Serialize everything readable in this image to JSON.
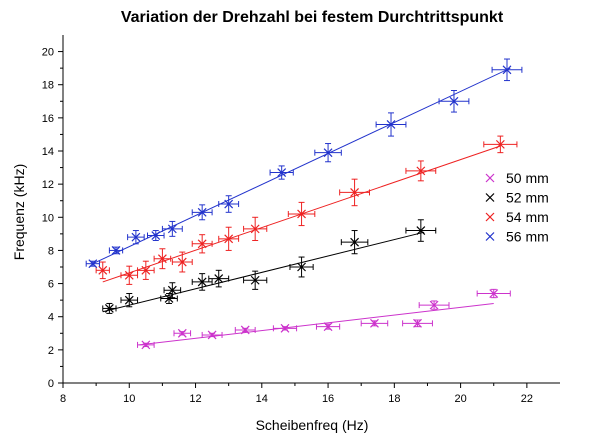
{
  "chart_data": {
    "type": "scatter",
    "title": "Variation der Drehzahl bei festem Durchtrittspunkt",
    "xlabel": "Scheibenfreq (Hz)",
    "ylabel": "Frequenz (kHz)",
    "xlim": [
      8,
      23
    ],
    "ylim": [
      0,
      21
    ],
    "xticks": [
      8,
      10,
      12,
      14,
      16,
      18,
      20,
      22
    ],
    "yticks": [
      0,
      2,
      4,
      6,
      8,
      10,
      12,
      14,
      16,
      18,
      20
    ],
    "legend_position": "right",
    "grid": false,
    "series": [
      {
        "name": "50 mm",
        "color": "#cc33cc",
        "marker": "x",
        "points": [
          {
            "x": 10.5,
            "y": 2.3,
            "xerr": 0.25,
            "yerr": 0.1
          },
          {
            "x": 11.6,
            "y": 3.0,
            "xerr": 0.25,
            "yerr": 0.1
          },
          {
            "x": 12.5,
            "y": 2.9,
            "xerr": 0.3,
            "yerr": 0.1
          },
          {
            "x": 13.5,
            "y": 3.2,
            "xerr": 0.3,
            "yerr": 0.1
          },
          {
            "x": 14.7,
            "y": 3.3,
            "xerr": 0.35,
            "yerr": 0.1
          },
          {
            "x": 16.0,
            "y": 3.4,
            "xerr": 0.35,
            "yerr": 0.15
          },
          {
            "x": 17.4,
            "y": 3.6,
            "xerr": 0.4,
            "yerr": 0.15
          },
          {
            "x": 18.7,
            "y": 3.6,
            "xerr": 0.45,
            "yerr": 0.2
          },
          {
            "x": 19.2,
            "y": 4.7,
            "xerr": 0.45,
            "yerr": 0.25
          },
          {
            "x": 21.0,
            "y": 5.4,
            "xerr": 0.5,
            "yerr": 0.25
          }
        ],
        "fit": {
          "x": [
            10.3,
            21.0
          ],
          "y": [
            2.3,
            4.8
          ]
        }
      },
      {
        "name": "52 mm",
        "color": "#000000",
        "marker": "x",
        "points": [
          {
            "x": 9.4,
            "y": 4.5,
            "xerr": 0.2,
            "yerr": 0.3
          },
          {
            "x": 10.0,
            "y": 5.0,
            "xerr": 0.25,
            "yerr": 0.4
          },
          {
            "x": 11.2,
            "y": 5.1,
            "xerr": 0.25,
            "yerr": 0.3
          },
          {
            "x": 11.3,
            "y": 5.6,
            "xerr": 0.25,
            "yerr": 0.45
          },
          {
            "x": 12.2,
            "y": 6.1,
            "xerr": 0.3,
            "yerr": 0.5
          },
          {
            "x": 12.7,
            "y": 6.3,
            "xerr": 0.3,
            "yerr": 0.5
          },
          {
            "x": 13.8,
            "y": 6.2,
            "xerr": 0.35,
            "yerr": 0.55
          },
          {
            "x": 15.2,
            "y": 7.0,
            "xerr": 0.35,
            "yerr": 0.6
          },
          {
            "x": 16.8,
            "y": 8.5,
            "xerr": 0.4,
            "yerr": 0.7
          },
          {
            "x": 18.8,
            "y": 9.2,
            "xerr": 0.45,
            "yerr": 0.65
          }
        ],
        "fit": {
          "x": [
            9.2,
            18.9
          ],
          "y": [
            4.3,
            9.1
          ]
        }
      },
      {
        "name": "54 mm",
        "color": "#ee2222",
        "marker": "x",
        "points": [
          {
            "x": 9.2,
            "y": 6.8,
            "xerr": 0.2,
            "yerr": 0.5
          },
          {
            "x": 10.0,
            "y": 6.5,
            "xerr": 0.25,
            "yerr": 0.55
          },
          {
            "x": 10.5,
            "y": 6.8,
            "xerr": 0.25,
            "yerr": 0.55
          },
          {
            "x": 11.0,
            "y": 7.5,
            "xerr": 0.25,
            "yerr": 0.6
          },
          {
            "x": 11.6,
            "y": 7.3,
            "xerr": 0.3,
            "yerr": 0.6
          },
          {
            "x": 12.2,
            "y": 8.4,
            "xerr": 0.3,
            "yerr": 0.55
          },
          {
            "x": 13.0,
            "y": 8.7,
            "xerr": 0.3,
            "yerr": 0.7
          },
          {
            "x": 13.8,
            "y": 9.3,
            "xerr": 0.35,
            "yerr": 0.7
          },
          {
            "x": 15.2,
            "y": 10.2,
            "xerr": 0.4,
            "yerr": 0.7
          },
          {
            "x": 16.8,
            "y": 11.5,
            "xerr": 0.45,
            "yerr": 0.8
          },
          {
            "x": 18.8,
            "y": 12.8,
            "xerr": 0.45,
            "yerr": 0.6
          },
          {
            "x": 21.2,
            "y": 14.4,
            "xerr": 0.5,
            "yerr": 0.5
          }
        ],
        "fit": {
          "x": [
            9.2,
            21.2
          ],
          "y": [
            6.1,
            14.3
          ]
        }
      },
      {
        "name": "56 mm",
        "color": "#2233cc",
        "marker": "x",
        "points": [
          {
            "x": 8.9,
            "y": 7.2,
            "xerr": 0.2,
            "yerr": 0.15
          },
          {
            "x": 9.6,
            "y": 8.0,
            "xerr": 0.2,
            "yerr": 0.2
          },
          {
            "x": 10.2,
            "y": 8.8,
            "xerr": 0.25,
            "yerr": 0.4
          },
          {
            "x": 10.8,
            "y": 8.9,
            "xerr": 0.25,
            "yerr": 0.3
          },
          {
            "x": 11.3,
            "y": 9.3,
            "xerr": 0.3,
            "yerr": 0.45
          },
          {
            "x": 12.2,
            "y": 10.3,
            "xerr": 0.3,
            "yerr": 0.45
          },
          {
            "x": 13.0,
            "y": 10.8,
            "xerr": 0.3,
            "yerr": 0.5
          },
          {
            "x": 14.6,
            "y": 12.7,
            "xerr": 0.35,
            "yerr": 0.4
          },
          {
            "x": 16.0,
            "y": 13.9,
            "xerr": 0.4,
            "yerr": 0.55
          },
          {
            "x": 17.9,
            "y": 15.6,
            "xerr": 0.45,
            "yerr": 0.7
          },
          {
            "x": 19.8,
            "y": 17.0,
            "xerr": 0.45,
            "yerr": 0.65
          },
          {
            "x": 21.4,
            "y": 18.9,
            "xerr": 0.45,
            "yerr": 0.65
          }
        ],
        "fit": {
          "x": [
            8.9,
            21.5
          ],
          "y": [
            7.2,
            19.0
          ]
        }
      }
    ]
  }
}
